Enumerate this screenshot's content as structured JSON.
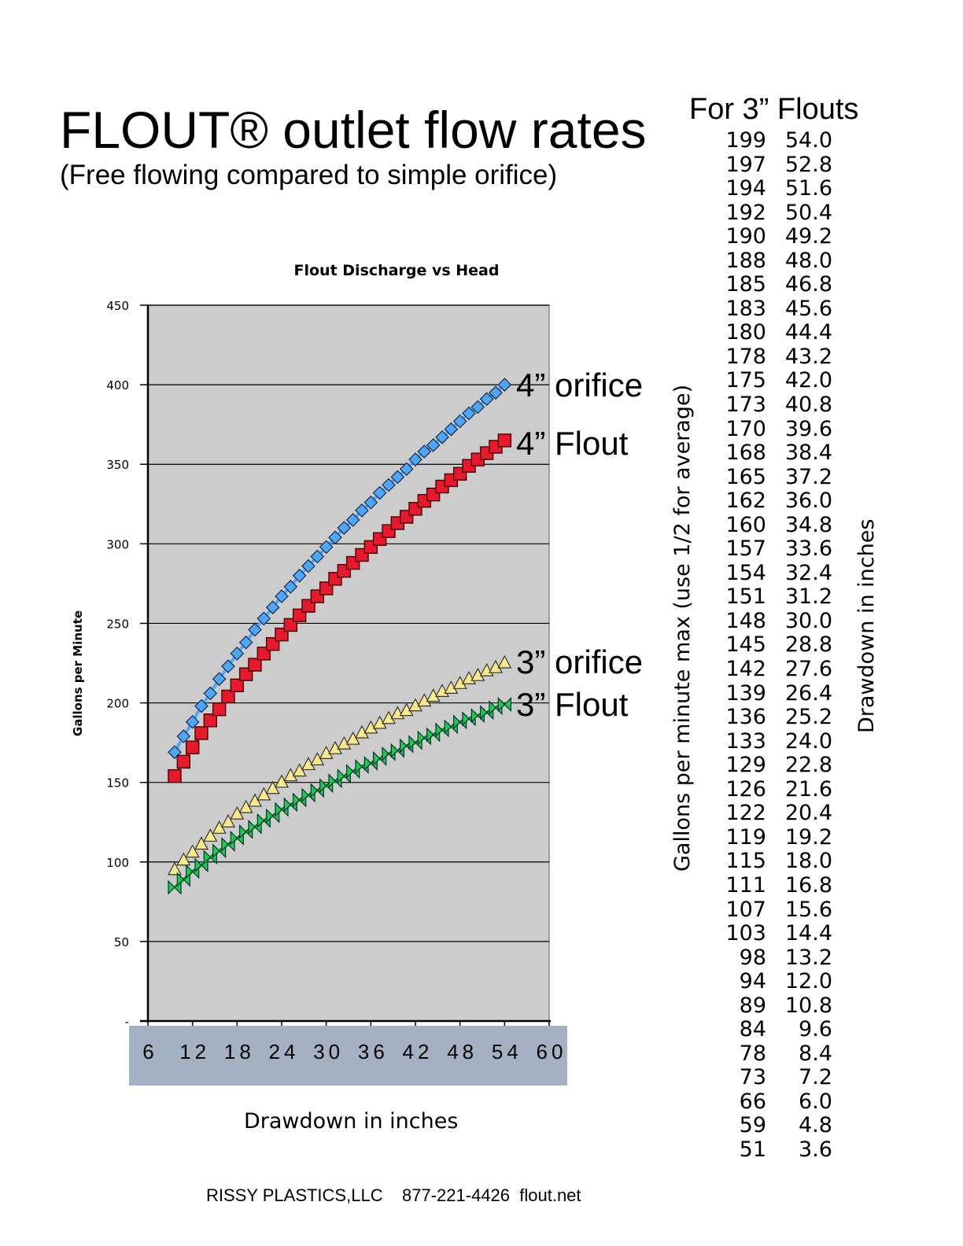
{
  "header": {
    "title": "FLOUT® outlet flow rates",
    "subtitle": "(Free flowing compared to simple orifice)"
  },
  "chart": {
    "title": "Flout Discharge vs Head",
    "ylabel": "Gallons per Minute",
    "xlabel": "Drawdown in inches",
    "y_ticks": [
      "450",
      "400",
      "350",
      "300",
      "250",
      "200",
      "150",
      "100",
      "50",
      "-"
    ],
    "x_ticks": [
      "6",
      "12",
      "18",
      "24",
      "30",
      "36",
      "42",
      "48",
      "54",
      "60"
    ],
    "series_labels": {
      "s4_orifice": "4” orifice",
      "s4_flout": "4” Flout",
      "s3_orifice": "3” orifice",
      "s3_flout": "3” Flout"
    },
    "colors": {
      "plot_bg": "#cccccc",
      "s4_orifice": "#4da6ff",
      "s4_flout": "#e8192c",
      "s3_orifice": "#fbe98a",
      "s3_flout": "#1fcc4a",
      "x_label_band": "#a3b1c2"
    }
  },
  "chart_data": {
    "type": "line",
    "title": "Flout Discharge vs Head",
    "xlabel": "Drawdown in inches",
    "ylabel": "Gallons per Minute",
    "xlim": [
      6,
      60
    ],
    "ylim": [
      0,
      450
    ],
    "y_ticks": [
      0,
      50,
      100,
      150,
      200,
      250,
      300,
      350,
      400,
      450
    ],
    "x_ticks": [
      6,
      12,
      18,
      24,
      30,
      36,
      42,
      48,
      54,
      60
    ],
    "grid": "horizontal",
    "legend": "inline labels at right end of each series",
    "x": [
      9.6,
      10.8,
      12.0,
      13.2,
      14.4,
      15.6,
      16.8,
      18.0,
      19.2,
      20.4,
      21.6,
      22.8,
      24.0,
      25.2,
      26.4,
      27.6,
      28.8,
      30.0,
      31.2,
      32.4,
      33.6,
      34.8,
      36.0,
      37.2,
      38.4,
      39.6,
      40.8,
      42.0,
      43.2,
      44.4,
      45.6,
      46.8,
      48.0,
      49.2,
      50.4,
      51.6,
      52.8,
      54.0
    ],
    "series": [
      {
        "name": "4” orifice",
        "marker": "diamond",
        "values": [
          169,
          179,
          188,
          198,
          206,
          215,
          223,
          231,
          238,
          246,
          253,
          260,
          267,
          273,
          280,
          286,
          292,
          298,
          304,
          310,
          315,
          321,
          326,
          332,
          337,
          342,
          347,
          353,
          358,
          362,
          367,
          372,
          377,
          382,
          386,
          391,
          395,
          400
        ]
      },
      {
        "name": "4” Flout",
        "marker": "square",
        "values": [
          154,
          163,
          172,
          181,
          189,
          196,
          204,
          211,
          218,
          224,
          231,
          237,
          243,
          249,
          255,
          261,
          267,
          272,
          278,
          283,
          288,
          293,
          298,
          303,
          308,
          313,
          317,
          322,
          327,
          331,
          336,
          340,
          344,
          349,
          353,
          357,
          361,
          365
        ]
      },
      {
        "name": "3” orifice",
        "marker": "triangle",
        "values": [
          95,
          101,
          106,
          111,
          116,
          121,
          125,
          130,
          134,
          138,
          142,
          146,
          150,
          154,
          157,
          161,
          164,
          168,
          171,
          174,
          177,
          181,
          184,
          187,
          190,
          193,
          195,
          198,
          201,
          204,
          207,
          209,
          212,
          215,
          217,
          220,
          222,
          225
        ]
      },
      {
        "name": "3” Flout",
        "marker": "bowtie",
        "values": [
          84,
          89,
          94,
          98,
          103,
          107,
          111,
          115,
          119,
          122,
          126,
          129,
          133,
          136,
          139,
          142,
          145,
          148,
          151,
          154,
          157,
          160,
          162,
          165,
          168,
          170,
          173,
          175,
          178,
          180,
          183,
          185,
          188,
          190,
          192,
          194,
          197,
          199
        ]
      }
    ]
  },
  "table": {
    "title": "For 3” Flouts",
    "left_label": "Gallons per minute max (use 1/2 for average)",
    "right_label": "Drawdown in inches",
    "rows": [
      [
        "199",
        "54.0"
      ],
      [
        "197",
        "52.8"
      ],
      [
        "194",
        "51.6"
      ],
      [
        "192",
        "50.4"
      ],
      [
        "190",
        "49.2"
      ],
      [
        "188",
        "48.0"
      ],
      [
        "185",
        "46.8"
      ],
      [
        "183",
        "45.6"
      ],
      [
        "180",
        "44.4"
      ],
      [
        "178",
        "43.2"
      ],
      [
        "175",
        "42.0"
      ],
      [
        "173",
        "40.8"
      ],
      [
        "170",
        "39.6"
      ],
      [
        "168",
        "38.4"
      ],
      [
        "165",
        "37.2"
      ],
      [
        "162",
        "36.0"
      ],
      [
        "160",
        "34.8"
      ],
      [
        "157",
        "33.6"
      ],
      [
        "154",
        "32.4"
      ],
      [
        "151",
        "31.2"
      ],
      [
        "148",
        "30.0"
      ],
      [
        "145",
        "28.8"
      ],
      [
        "142",
        "27.6"
      ],
      [
        "139",
        "26.4"
      ],
      [
        "136",
        "25.2"
      ],
      [
        "133",
        "24.0"
      ],
      [
        "129",
        "22.8"
      ],
      [
        "126",
        "21.6"
      ],
      [
        "122",
        "20.4"
      ],
      [
        "119",
        "19.2"
      ],
      [
        "115",
        "18.0"
      ],
      [
        "111",
        "16.8"
      ],
      [
        "107",
        "15.6"
      ],
      [
        "103",
        "14.4"
      ],
      [
        "98",
        "13.2"
      ],
      [
        "94",
        "12.0"
      ],
      [
        "89",
        "10.8"
      ],
      [
        "84",
        "9.6"
      ],
      [
        "78",
        "8.4"
      ],
      [
        "73",
        "7.2"
      ],
      [
        "66",
        "6.0"
      ],
      [
        "59",
        "4.8"
      ],
      [
        "51",
        "3.6"
      ]
    ]
  },
  "footer": {
    "text": "RISSY PLASTICS,LLC    877-221-4426  flout.net"
  }
}
